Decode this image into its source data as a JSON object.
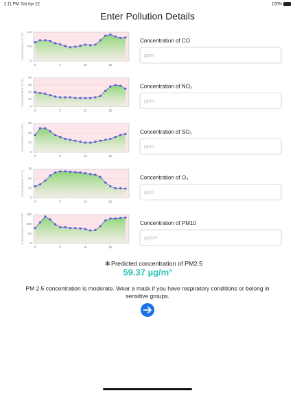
{
  "status_bar": {
    "time": "2:11 PM",
    "date": "Sat Apr 22",
    "battery": "100%"
  },
  "title": "Enter Pollution Details",
  "chart_data": [
    {
      "type": "line",
      "y_label": "Concentration of CO",
      "x": [
        0,
        1,
        2,
        3,
        4,
        5,
        6,
        7,
        8,
        9,
        10,
        11,
        12,
        13,
        14,
        15,
        16,
        17,
        18
      ],
      "values": [
        0.65,
        0.72,
        0.72,
        0.7,
        0.62,
        0.58,
        0.52,
        0.48,
        0.5,
        0.53,
        0.57,
        0.55,
        0.57,
        0.72,
        0.88,
        0.92,
        0.85,
        0.8,
        0.82
      ],
      "xlim": [
        -0.3,
        18.7
      ],
      "xticks": [
        0,
        5,
        10,
        15
      ],
      "ylim": [
        0,
        1
      ],
      "yticks": [
        0,
        0.5,
        {
          "value": 1,
          "label": "1.0"
        }
      ],
      "color": "#5b5bd6"
    },
    {
      "type": "line",
      "y_label": "Concentration of NO₂",
      "x": [
        0,
        1,
        2,
        3,
        4,
        5,
        6,
        7,
        8,
        9,
        10,
        11,
        12,
        13,
        14,
        15,
        16,
        17,
        18
      ],
      "values": [
        20,
        19,
        18,
        16,
        14,
        13,
        13,
        13,
        12,
        12,
        12,
        12,
        13,
        15,
        22,
        28,
        30,
        29,
        25
      ],
      "xlim": [
        -0.3,
        18.7
      ],
      "xticks": [
        0,
        5,
        10,
        15
      ],
      "ylim": [
        0,
        40
      ],
      "yticks": [
        0,
        10,
        20,
        30,
        40
      ],
      "color": "#5b5bd6"
    },
    {
      "type": "line",
      "y_label": "Concentration of SO₂",
      "x": [
        0,
        1,
        2,
        3,
        4,
        5,
        6,
        7,
        8,
        9,
        10,
        11,
        12,
        13,
        14,
        15,
        16,
        17,
        18
      ],
      "values": [
        18,
        25,
        25,
        22,
        18,
        16,
        14,
        13,
        12,
        11,
        10,
        10,
        11,
        12,
        13,
        14,
        16,
        18,
        19
      ],
      "xlim": [
        -0.3,
        18.7
      ],
      "xticks": [
        0,
        5,
        10,
        15
      ],
      "ylim": [
        0,
        30
      ],
      "yticks": [
        0,
        10,
        20,
        30
      ],
      "color": "#5b5bd6"
    },
    {
      "type": "line",
      "y_label": "Concentration of O₃",
      "x": [
        0,
        1,
        2,
        3,
        4,
        5,
        6,
        7,
        8,
        9,
        10,
        11,
        12,
        13,
        14,
        15,
        16,
        17,
        18
      ],
      "values": [
        30,
        35,
        45,
        58,
        66,
        69,
        69,
        68,
        67,
        66,
        64,
        62,
        60,
        54,
        40,
        30,
        25,
        25,
        24
      ],
      "xlim": [
        -0.3,
        18.7
      ],
      "xticks": [
        0,
        5,
        10,
        15
      ],
      "ylim": [
        0,
        75
      ],
      "yticks": [
        0,
        25,
        50,
        75
      ],
      "color": "#5b5bd6"
    },
    {
      "type": "line",
      "y_label": "Concentration of PM10",
      "x": [
        0,
        1,
        2,
        3,
        4,
        5,
        6,
        7,
        8,
        9,
        10,
        11,
        12,
        13,
        14,
        15,
        16,
        17,
        18
      ],
      "values": [
        80,
        110,
        140,
        125,
        100,
        85,
        85,
        80,
        80,
        78,
        75,
        68,
        70,
        90,
        120,
        130,
        130,
        133,
        135
      ],
      "xlim": [
        -0.3,
        18.7
      ],
      "xticks": [
        0,
        5,
        10,
        15
      ],
      "ylim": [
        0,
        150
      ],
      "yticks": [
        0,
        50,
        100,
        150
      ],
      "color": "#5b5bd6"
    }
  ],
  "inputs": [
    {
      "label": "Concentration of CO",
      "placeholder": "ppm"
    },
    {
      "label": "Concentration of NO₂",
      "placeholder": "ppm"
    },
    {
      "label": "Concentration of SO₂",
      "placeholder": "ppm"
    },
    {
      "label": "Concentration of O₃",
      "placeholder": "ppm"
    },
    {
      "label": "Concentration of PM10",
      "placeholder": "µg/m³"
    }
  ],
  "prediction": {
    "label": "Predicted concentration of PM2.5",
    "value": "59.37 µg/m³"
  },
  "message": [
    "PM 2.5 concentration is moderate. Wear a mask if you have respiratory conditions or belong in",
    "sensitive groups."
  ]
}
